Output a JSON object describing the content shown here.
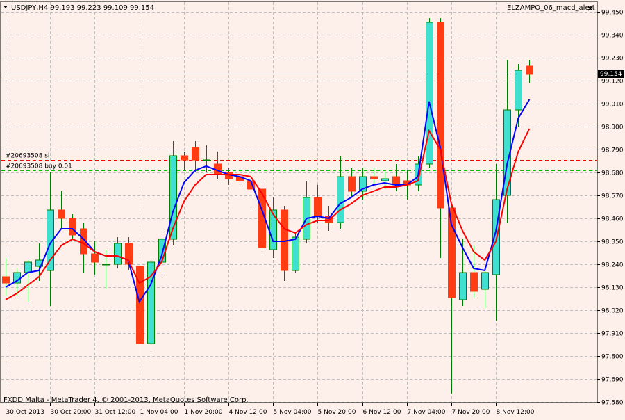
{
  "header": {
    "symbol_info": "USDJPY,H4  99.193 99.223 99.109 99.154",
    "indicator_name": "ELZAMPO_06_macd_alert"
  },
  "footer": {
    "copyright": "FXDD Malta - MetaTrader 4, © 2001-2013, MetaQuotes Software Corp."
  },
  "colors": {
    "background": "#fdf0ea",
    "bull_body": "#40e0d0",
    "bear_body": "#ff3c14",
    "wick": "#008000",
    "grid": "#c0c0c0",
    "axis": "#000000",
    "fast_ma": "#0000ff",
    "slow_ma": "#ff0000",
    "order_line_sl": "#ff0000",
    "order_line_buy": "#00c000",
    "bid_line": "#808080"
  },
  "chart_data": {
    "type": "candlestick",
    "symbol": "USDJPY",
    "timeframe": "H4",
    "current_price": "99.154",
    "y_ticks": [
      "99.450",
      "99.340",
      "99.230",
      "99.120",
      "99.010",
      "98.900",
      "98.790",
      "98.680",
      "98.570",
      "98.460",
      "98.350",
      "98.240",
      "98.130",
      "98.020",
      "97.910",
      "97.800",
      "97.690",
      "97.580"
    ],
    "ylim": [
      97.58,
      99.45
    ],
    "x_ticks": [
      {
        "label": "30 Oct 2013",
        "index": 0
      },
      {
        "label": "30 Oct 20:00",
        "index": 4
      },
      {
        "label": "31 Oct 12:00",
        "index": 8
      },
      {
        "label": "1 Nov 04:00",
        "index": 12
      },
      {
        "label": "1 Nov 20:00",
        "index": 16
      },
      {
        "label": "4 Nov 12:00",
        "index": 20
      },
      {
        "label": "5 Nov 04:00",
        "index": 24
      },
      {
        "label": "5 Nov 20:00",
        "index": 28
      },
      {
        "label": "6 Nov 12:00",
        "index": 32
      },
      {
        "label": "7 Nov 04:00",
        "index": 36
      },
      {
        "label": "7 Nov 20:00",
        "index": 40
      },
      {
        "label": "8 Nov 12:00",
        "index": 44
      }
    ],
    "candles": [
      {
        "o": 98.18,
        "h": 98.27,
        "l": 98.09,
        "c": 98.15
      },
      {
        "o": 98.15,
        "h": 98.22,
        "l": 98.09,
        "c": 98.2
      },
      {
        "o": 98.2,
        "h": 98.26,
        "l": 98.06,
        "c": 98.25
      },
      {
        "o": 98.23,
        "h": 98.34,
        "l": 98.16,
        "c": 98.26
      },
      {
        "o": 98.21,
        "h": 98.68,
        "l": 98.04,
        "c": 98.5
      },
      {
        "o": 98.5,
        "h": 98.59,
        "l": 98.41,
        "c": 98.46
      },
      {
        "o": 98.46,
        "h": 98.48,
        "l": 98.36,
        "c": 98.38
      },
      {
        "o": 98.41,
        "h": 98.44,
        "l": 98.2,
        "c": 98.29
      },
      {
        "o": 98.29,
        "h": 98.35,
        "l": 98.19,
        "c": 98.25
      },
      {
        "o": 98.24,
        "h": 98.31,
        "l": 98.12,
        "c": 98.24
      },
      {
        "o": 98.24,
        "h": 98.37,
        "l": 98.22,
        "c": 98.34
      },
      {
        "o": 98.34,
        "h": 98.37,
        "l": 98.21,
        "c": 98.24
      },
      {
        "o": 98.23,
        "h": 98.25,
        "l": 97.8,
        "c": 97.86
      },
      {
        "o": 97.86,
        "h": 98.27,
        "l": 97.82,
        "c": 98.25
      },
      {
        "o": 98.25,
        "h": 98.4,
        "l": 98.19,
        "c": 98.36
      },
      {
        "o": 98.36,
        "h": 98.83,
        "l": 98.33,
        "c": 98.76
      },
      {
        "o": 98.76,
        "h": 98.78,
        "l": 98.69,
        "c": 98.74
      },
      {
        "o": 98.8,
        "h": 98.83,
        "l": 98.68,
        "c": 98.74
      },
      {
        "o": 98.74,
        "h": 98.81,
        "l": 98.68,
        "c": 98.74
      },
      {
        "o": 98.72,
        "h": 98.78,
        "l": 98.65,
        "c": 98.67
      },
      {
        "o": 98.68,
        "h": 98.7,
        "l": 98.62,
        "c": 98.65
      },
      {
        "o": 98.66,
        "h": 98.69,
        "l": 98.61,
        "c": 98.64
      },
      {
        "o": 98.64,
        "h": 98.7,
        "l": 98.51,
        "c": 98.6
      },
      {
        "o": 98.6,
        "h": 98.64,
        "l": 98.3,
        "c": 98.32
      },
      {
        "o": 98.31,
        "h": 98.56,
        "l": 98.27,
        "c": 98.5
      },
      {
        "o": 98.5,
        "h": 98.52,
        "l": 98.16,
        "c": 98.21
      },
      {
        "o": 98.21,
        "h": 98.39,
        "l": 98.2,
        "c": 98.37
      },
      {
        "o": 98.36,
        "h": 98.64,
        "l": 98.34,
        "c": 98.56
      },
      {
        "o": 98.56,
        "h": 98.62,
        "l": 98.44,
        "c": 98.47
      },
      {
        "o": 98.47,
        "h": 98.52,
        "l": 98.4,
        "c": 98.44
      },
      {
        "o": 98.44,
        "h": 98.76,
        "l": 98.41,
        "c": 98.66
      },
      {
        "o": 98.66,
        "h": 98.7,
        "l": 98.56,
        "c": 98.59
      },
      {
        "o": 98.59,
        "h": 98.7,
        "l": 98.55,
        "c": 98.66
      },
      {
        "o": 98.66,
        "h": 98.7,
        "l": 98.62,
        "c": 98.65
      },
      {
        "o": 98.64,
        "h": 98.68,
        "l": 98.6,
        "c": 98.65
      },
      {
        "o": 98.66,
        "h": 98.72,
        "l": 98.59,
        "c": 98.62
      },
      {
        "o": 98.64,
        "h": 98.69,
        "l": 98.55,
        "c": 98.62
      },
      {
        "o": 98.62,
        "h": 98.76,
        "l": 98.59,
        "c": 98.72
      },
      {
        "o": 98.72,
        "h": 99.42,
        "l": 98.7,
        "c": 99.4
      },
      {
        "o": 99.4,
        "h": 99.42,
        "l": 98.27,
        "c": 98.51
      },
      {
        "o": 98.51,
        "h": 98.52,
        "l": 97.62,
        "c": 98.08
      },
      {
        "o": 98.07,
        "h": 98.36,
        "l": 98.04,
        "c": 98.2
      },
      {
        "o": 98.2,
        "h": 98.33,
        "l": 98.08,
        "c": 98.11
      },
      {
        "o": 98.12,
        "h": 98.22,
        "l": 98.03,
        "c": 98.2
      },
      {
        "o": 98.19,
        "h": 98.72,
        "l": 97.97,
        "c": 98.55
      },
      {
        "o": 98.57,
        "h": 99.22,
        "l": 98.44,
        "c": 98.98
      },
      {
        "o": 98.98,
        "h": 99.2,
        "l": 98.9,
        "c": 99.17
      },
      {
        "o": 99.19,
        "h": 99.22,
        "l": 99.11,
        "c": 99.15
      }
    ],
    "series": [
      {
        "values": [
          98.13,
          98.16,
          98.2,
          98.21,
          98.34,
          98.41,
          98.41,
          98.36,
          98.3,
          98.28,
          98.28,
          98.26,
          98.06,
          98.14,
          98.28,
          98.49,
          98.63,
          98.69,
          98.71,
          98.69,
          98.67,
          98.66,
          98.64,
          98.5,
          98.35,
          98.35,
          98.36,
          98.46,
          98.47,
          98.46,
          98.53,
          98.56,
          98.6,
          98.62,
          98.63,
          98.62,
          98.62,
          98.66,
          99.02,
          98.8,
          98.43,
          98.32,
          98.22,
          98.21,
          98.4,
          98.72,
          98.94,
          99.03
        ]
      },
      {
        "values": [
          98.07,
          98.1,
          98.14,
          98.18,
          98.26,
          98.33,
          98.36,
          98.34,
          98.3,
          98.28,
          98.28,
          98.26,
          98.15,
          98.18,
          98.25,
          98.41,
          98.54,
          98.62,
          98.67,
          98.67,
          98.67,
          98.67,
          98.66,
          98.58,
          98.48,
          98.41,
          98.39,
          98.43,
          98.45,
          98.45,
          98.5,
          98.53,
          98.57,
          98.59,
          98.61,
          98.61,
          98.62,
          98.64,
          98.88,
          98.79,
          98.53,
          98.4,
          98.3,
          98.26,
          98.35,
          98.6,
          98.78,
          98.89
        ]
      }
    ],
    "horizontal_lines": [
      {
        "label": "#20693508 sl",
        "value": 98.74,
        "style": "dashed",
        "color": "#ff0000"
      },
      {
        "label": "#20693508 buy 0.01",
        "value": 98.69,
        "style": "dashed",
        "color": "#00c000"
      },
      {
        "label": "",
        "value": 99.154,
        "style": "solid",
        "color": "#808080"
      }
    ]
  }
}
